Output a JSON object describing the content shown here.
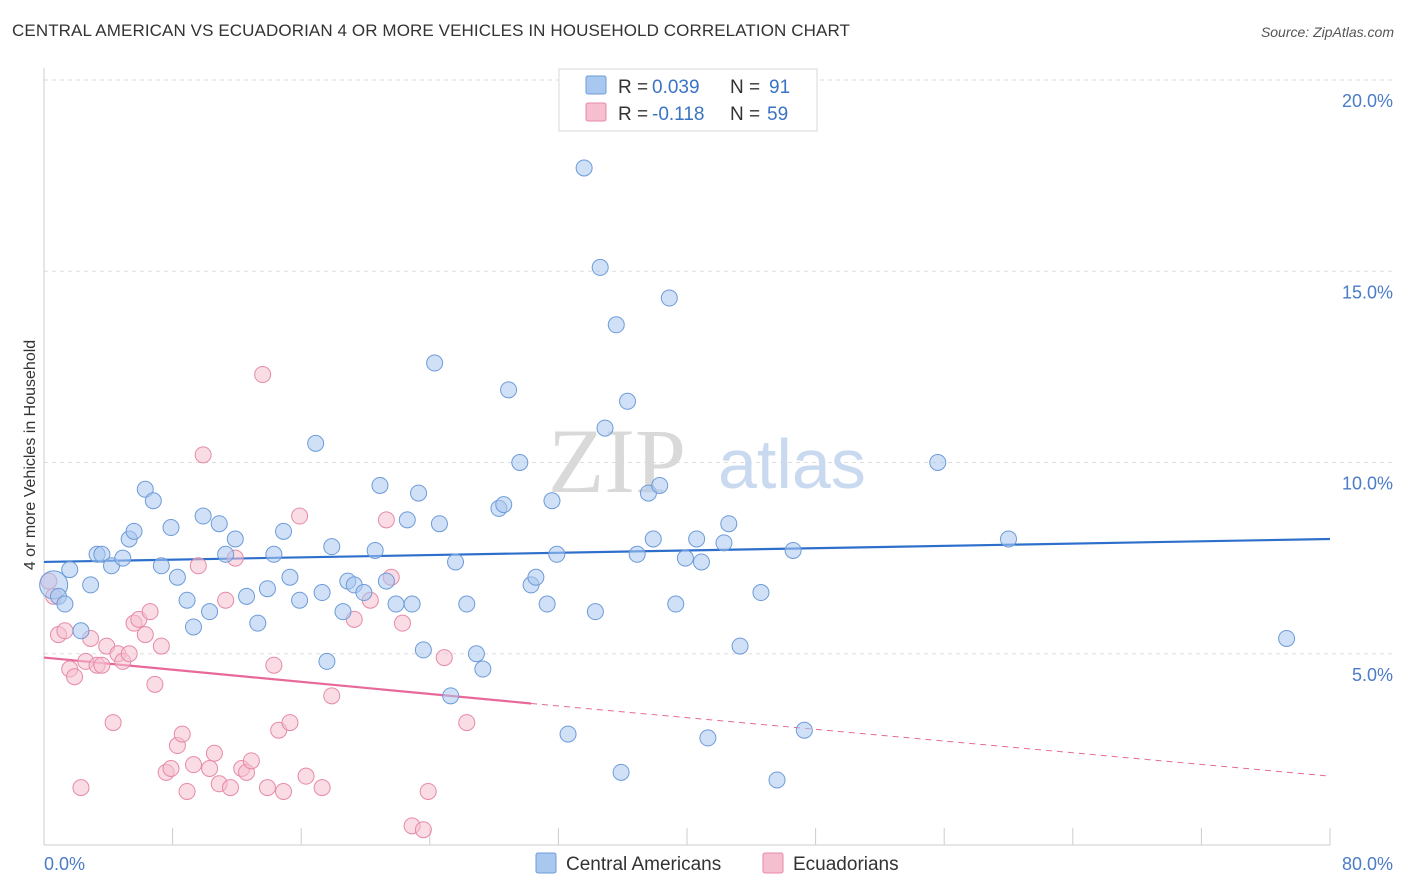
{
  "header": {
    "title": "CENTRAL AMERICAN VS ECUADORIAN 4 OR MORE VEHICLES IN HOUSEHOLD CORRELATION CHART",
    "source": "Source: ZipAtlas.com"
  },
  "watermark": {
    "zip": "ZIP",
    "atlas": "atlas"
  },
  "legend": {
    "rows": [
      {
        "r_label": "R =",
        "r_value": "0.039",
        "n_label": "N =",
        "n_value": "91"
      },
      {
        "r_label": "R =",
        "r_value": "-0.118",
        "n_label": "N =",
        "n_value": "59"
      }
    ]
  },
  "bottom_legend": {
    "series1": "Central Americans",
    "series2": "Ecuadorians"
  },
  "colors": {
    "blue_fill": "#a9c8f0",
    "blue_stroke": "#6d9bd8",
    "blue_line": "#2f6fcc",
    "pink_fill": "#f6bfd0",
    "pink_stroke": "#e68aa8",
    "pink_line": "#e8689a",
    "grid": "#dddddd",
    "tick_text": "#4a7cc7"
  },
  "chart_data": {
    "type": "scatter",
    "title": "CENTRAL AMERICAN VS ECUADORIAN 4 OR MORE VEHICLES IN HOUSEHOLD CORRELATION CHART",
    "xlabel": "",
    "ylabel": "4 or more Vehicles in Household",
    "xlim": [
      0,
      80
    ],
    "ylim": [
      0,
      20
    ],
    "x_tick_labels": [
      "0.0%",
      "80.0%"
    ],
    "y_ticks": [
      5,
      10,
      15,
      20
    ],
    "y_tick_labels": [
      "5.0%",
      "10.0%",
      "15.0%",
      "20.0%"
    ],
    "grid": true,
    "legend_position": "top-center",
    "series": [
      {
        "name": "Central Americans",
        "r": 0.039,
        "n": 91,
        "trend": {
          "x": [
            0,
            80
          ],
          "y": [
            7.4,
            8.0
          ]
        },
        "points": [
          [
            0.6,
            6.8
          ],
          [
            0.9,
            6.5
          ],
          [
            1.3,
            6.3
          ],
          [
            1.6,
            7.2
          ],
          [
            2.3,
            5.6
          ],
          [
            2.9,
            6.8
          ],
          [
            3.3,
            7.6
          ],
          [
            3.6,
            7.6
          ],
          [
            4.2,
            7.3
          ],
          [
            4.9,
            7.5
          ],
          [
            5.3,
            8.0
          ],
          [
            5.6,
            8.2
          ],
          [
            6.3,
            9.3
          ],
          [
            6.8,
            9.0
          ],
          [
            7.3,
            7.3
          ],
          [
            7.9,
            8.3
          ],
          [
            8.3,
            7.0
          ],
          [
            8.9,
            6.4
          ],
          [
            9.3,
            5.7
          ],
          [
            9.9,
            8.6
          ],
          [
            10.3,
            6.1
          ],
          [
            10.9,
            8.4
          ],
          [
            11.3,
            7.6
          ],
          [
            11.9,
            8.0
          ],
          [
            12.6,
            6.5
          ],
          [
            13.3,
            5.8
          ],
          [
            13.9,
            6.7
          ],
          [
            14.3,
            7.6
          ],
          [
            14.9,
            8.2
          ],
          [
            15.3,
            7.0
          ],
          [
            15.9,
            6.4
          ],
          [
            16.9,
            10.5
          ],
          [
            17.3,
            6.6
          ],
          [
            17.9,
            7.8
          ],
          [
            17.6,
            4.8
          ],
          [
            18.6,
            6.1
          ],
          [
            18.9,
            6.9
          ],
          [
            19.3,
            6.8
          ],
          [
            19.9,
            6.6
          ],
          [
            20.6,
            7.7
          ],
          [
            20.9,
            9.4
          ],
          [
            21.3,
            6.9
          ],
          [
            21.9,
            6.3
          ],
          [
            22.6,
            8.5
          ],
          [
            22.9,
            6.3
          ],
          [
            23.3,
            9.2
          ],
          [
            23.6,
            5.1
          ],
          [
            24.3,
            12.6
          ],
          [
            24.6,
            8.4
          ],
          [
            25.6,
            7.4
          ],
          [
            25.3,
            3.9
          ],
          [
            26.3,
            6.3
          ],
          [
            26.9,
            5.0
          ],
          [
            27.3,
            4.6
          ],
          [
            28.3,
            8.8
          ],
          [
            28.6,
            8.9
          ],
          [
            28.9,
            11.9
          ],
          [
            29.6,
            10.0
          ],
          [
            30.3,
            6.8
          ],
          [
            30.6,
            7.0
          ],
          [
            31.3,
            6.3
          ],
          [
            31.6,
            9.0
          ],
          [
            31.9,
            7.6
          ],
          [
            32.6,
            2.9
          ],
          [
            33.6,
            17.7
          ],
          [
            34.3,
            6.1
          ],
          [
            34.6,
            15.1
          ],
          [
            34.9,
            10.9
          ],
          [
            35.6,
            13.6
          ],
          [
            35.9,
            1.9
          ],
          [
            36.3,
            11.6
          ],
          [
            36.9,
            7.6
          ],
          [
            37.6,
            9.2
          ],
          [
            37.9,
            8.0
          ],
          [
            38.3,
            9.4
          ],
          [
            38.9,
            14.3
          ],
          [
            39.3,
            6.3
          ],
          [
            39.9,
            7.5
          ],
          [
            40.6,
            8.0
          ],
          [
            40.9,
            7.4
          ],
          [
            41.3,
            2.8
          ],
          [
            42.3,
            7.9
          ],
          [
            42.6,
            8.4
          ],
          [
            43.3,
            5.2
          ],
          [
            44.6,
            6.6
          ],
          [
            45.6,
            1.7
          ],
          [
            46.6,
            7.7
          ],
          [
            47.3,
            3.0
          ],
          [
            55.6,
            10.0
          ],
          [
            60.0,
            8.0
          ],
          [
            77.3,
            5.4
          ]
        ]
      },
      {
        "name": "Ecuadorians",
        "r": -0.118,
        "n": 59,
        "trend_solid": {
          "x": [
            0,
            30.3
          ],
          "y": [
            4.9,
            3.7
          ]
        },
        "trend_dashed": {
          "x": [
            30.3,
            80
          ],
          "y": [
            3.7,
            1.8
          ]
        },
        "points": [
          [
            0.3,
            6.9
          ],
          [
            0.6,
            6.5
          ],
          [
            0.9,
            5.5
          ],
          [
            1.3,
            5.6
          ],
          [
            1.6,
            4.6
          ],
          [
            1.9,
            4.4
          ],
          [
            2.3,
            1.5
          ],
          [
            2.6,
            4.8
          ],
          [
            2.9,
            5.4
          ],
          [
            3.3,
            4.7
          ],
          [
            3.6,
            4.7
          ],
          [
            3.9,
            5.2
          ],
          [
            4.3,
            3.2
          ],
          [
            4.6,
            5.0
          ],
          [
            4.9,
            4.8
          ],
          [
            5.3,
            5.0
          ],
          [
            5.6,
            5.8
          ],
          [
            5.9,
            5.9
          ],
          [
            6.3,
            5.5
          ],
          [
            6.6,
            6.1
          ],
          [
            6.9,
            4.2
          ],
          [
            7.3,
            5.2
          ],
          [
            7.6,
            1.9
          ],
          [
            7.9,
            2.0
          ],
          [
            8.3,
            2.6
          ],
          [
            8.6,
            2.9
          ],
          [
            8.9,
            1.4
          ],
          [
            9.3,
            2.1
          ],
          [
            9.6,
            7.3
          ],
          [
            9.9,
            10.2
          ],
          [
            10.3,
            2.0
          ],
          [
            10.6,
            2.4
          ],
          [
            10.9,
            1.6
          ],
          [
            11.3,
            6.4
          ],
          [
            11.6,
            1.5
          ],
          [
            11.9,
            7.5
          ],
          [
            12.3,
            2.0
          ],
          [
            12.6,
            1.9
          ],
          [
            12.9,
            2.2
          ],
          [
            13.6,
            12.3
          ],
          [
            13.9,
            1.5
          ],
          [
            14.3,
            4.7
          ],
          [
            14.6,
            3.0
          ],
          [
            14.9,
            1.4
          ],
          [
            15.3,
            3.2
          ],
          [
            15.9,
            8.6
          ],
          [
            16.3,
            1.8
          ],
          [
            17.3,
            1.5
          ],
          [
            17.9,
            3.9
          ],
          [
            19.3,
            5.9
          ],
          [
            20.3,
            6.4
          ],
          [
            21.3,
            8.5
          ],
          [
            21.6,
            7.0
          ],
          [
            22.3,
            5.8
          ],
          [
            22.9,
            0.5
          ],
          [
            23.6,
            0.4
          ],
          [
            23.9,
            1.4
          ],
          [
            24.9,
            4.9
          ],
          [
            26.3,
            3.2
          ]
        ]
      }
    ]
  }
}
